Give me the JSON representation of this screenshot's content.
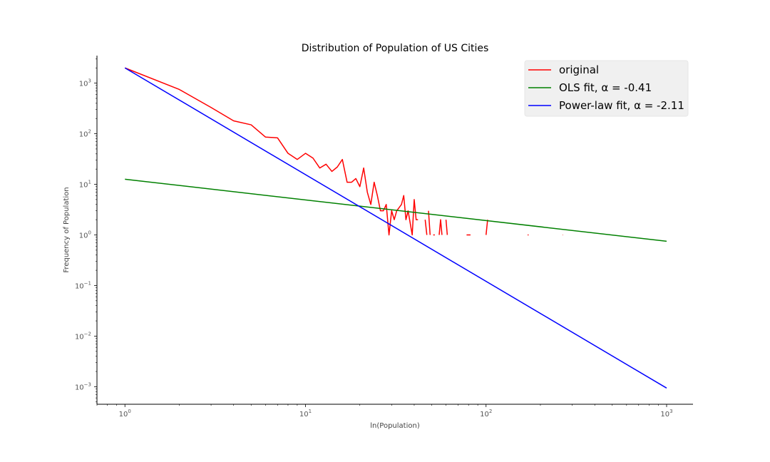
{
  "chart_data": {
    "type": "line",
    "title": "Distribution of Population of US Cities",
    "xlabel": "ln(Population)",
    "ylabel": "Frequency of Population",
    "xscale": "log",
    "yscale": "log",
    "xlim": [
      0.7,
      1400
    ],
    "ylim": [
      0.00045,
      3500
    ],
    "xticks": [
      {
        "value": 1,
        "base": "10",
        "exp": "0"
      },
      {
        "value": 10,
        "base": "10",
        "exp": "1"
      },
      {
        "value": 100,
        "base": "10",
        "exp": "2"
      },
      {
        "value": 1000,
        "base": "10",
        "exp": "3"
      }
    ],
    "yticks": [
      {
        "value": 0.001,
        "base": "10",
        "exp": "−3"
      },
      {
        "value": 0.01,
        "base": "10",
        "exp": "−2"
      },
      {
        "value": 0.1,
        "base": "10",
        "exp": "−1"
      },
      {
        "value": 1,
        "base": "10",
        "exp": "0"
      },
      {
        "value": 10,
        "base": "10",
        "exp": "1"
      },
      {
        "value": 100,
        "base": "10",
        "exp": "2"
      },
      {
        "value": 1000,
        "base": "10",
        "exp": "3"
      }
    ],
    "grid": false,
    "legend_position": "top-right",
    "series": [
      {
        "name": "original",
        "color": "#ff0000",
        "segments": [
          [
            [
              1,
              2000
            ],
            [
              2,
              750
            ],
            [
              3,
              330
            ],
            [
              4,
              180
            ],
            [
              5,
              150
            ],
            [
              6,
              86
            ],
            [
              7,
              83
            ],
            [
              8,
              41
            ],
            [
              9,
              31
            ],
            [
              10,
              41
            ],
            [
              11,
              33
            ],
            [
              12,
              21
            ],
            [
              13,
              25
            ],
            [
              14,
              18
            ],
            [
              15,
              22
            ],
            [
              16,
              31
            ],
            [
              17,
              11
            ],
            [
              18,
              11
            ],
            [
              19,
              13
            ],
            [
              20,
              9
            ],
            [
              21,
              21
            ],
            [
              22,
              7
            ],
            [
              23,
              4
            ],
            [
              24,
              11
            ],
            [
              25,
              6
            ],
            [
              26,
              3
            ],
            [
              27,
              3
            ],
            [
              28,
              4
            ],
            [
              29,
              1
            ],
            [
              30,
              3
            ],
            [
              31,
              2
            ],
            [
              32,
              3
            ],
            [
              34,
              4
            ],
            [
              35,
              6
            ],
            [
              36,
              2
            ],
            [
              37,
              3
            ],
            [
              39,
              1
            ],
            [
              40,
              5
            ],
            [
              41,
              2
            ],
            [
              42,
              2
            ]
          ],
          [
            [
              46,
              2
            ],
            [
              47,
              1
            ]
          ],
          [
            [
              48,
              3
            ],
            [
              49,
              1
            ]
          ],
          [
            [
              51,
              1
            ],
            [
              52,
              1
            ]
          ],
          [
            [
              55,
              1
            ],
            [
              56,
              2
            ],
            [
              57,
              1
            ]
          ],
          [
            [
              60,
              2
            ],
            [
              61,
              1
            ]
          ],
          [
            [
              78,
              1
            ],
            [
              82,
              1
            ]
          ],
          [
            [
              100,
              1
            ],
            [
              102,
              2
            ]
          ],
          [
            [
              170,
              1
            ],
            [
              172,
              1
            ]
          ],
          [
            [
              265,
              1
            ],
            [
              266,
              1
            ]
          ]
        ]
      },
      {
        "name": "OLS fit, α = -0.41",
        "color": "#008000",
        "x": [
          1,
          1000
        ],
        "y": [
          12.6,
          0.75
        ]
      },
      {
        "name": "Power-law fit, α = -2.11",
        "color": "#0000ff",
        "x": [
          1,
          1000
        ],
        "y": [
          2000,
          0.00094
        ]
      }
    ]
  }
}
